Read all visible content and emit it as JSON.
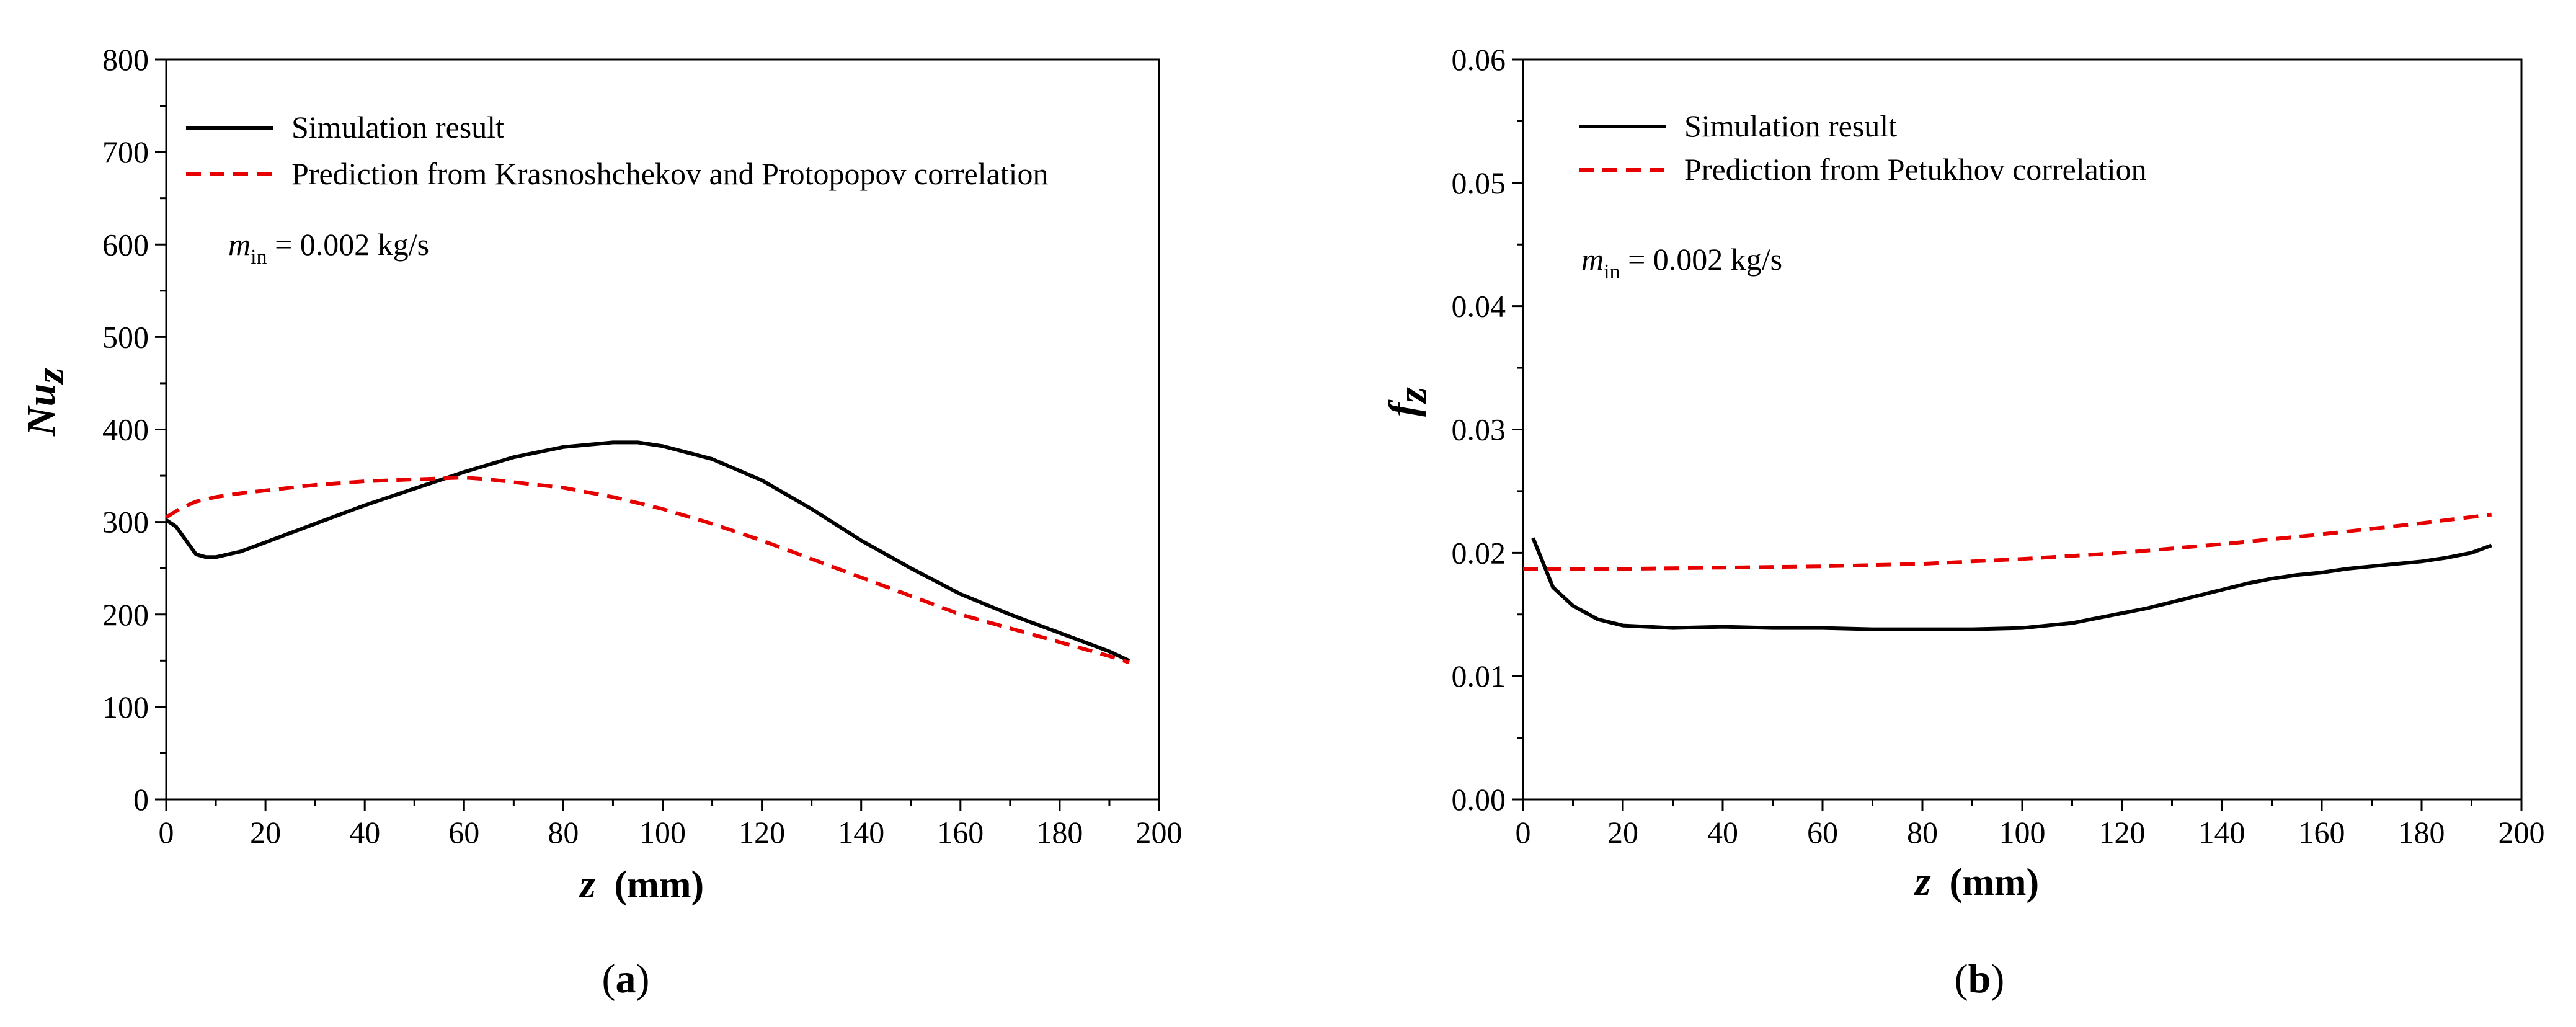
{
  "colors": {
    "simulation": "#000000",
    "prediction": "#e60000"
  },
  "chart_data": [
    {
      "type": "line",
      "panel_label_open": "(",
      "panel_label": "a",
      "panel_label_close": ")",
      "xlabel_var": "z",
      "xlabel_unit": "(mm)",
      "ylabel_var": "Nu",
      "ylabel_sub": "z",
      "xlim": [
        0,
        200
      ],
      "ylim": [
        0,
        800
      ],
      "xticks": [
        0,
        20,
        40,
        60,
        80,
        100,
        120,
        140,
        160,
        180,
        200
      ],
      "yticks": [
        0,
        100,
        200,
        300,
        400,
        500,
        600,
        700,
        800
      ],
      "yticks_display": [
        "0",
        "100",
        "200",
        "300",
        "400",
        "500",
        "600",
        "700",
        "800"
      ],
      "annotation": {
        "var": "m",
        "sub": "in",
        "text": " = 0.002 kg/s"
      },
      "legend_position": "top-left",
      "series": [
        {
          "name": "Simulation result",
          "style": "solid",
          "x": [
            0,
            2,
            4,
            6,
            8,
            10,
            15,
            20,
            30,
            40,
            50,
            60,
            70,
            80,
            90,
            95,
            100,
            110,
            120,
            130,
            140,
            150,
            160,
            170,
            180,
            190,
            194
          ],
          "y": [
            302,
            295,
            280,
            265,
            262,
            262,
            268,
            278,
            298,
            318,
            336,
            354,
            370,
            381,
            386,
            386,
            382,
            368,
            345,
            314,
            280,
            250,
            222,
            200,
            180,
            160,
            150
          ]
        },
        {
          "name": "Prediction from Krasnoshchekov and Protopopov correlation",
          "style": "dashed",
          "x": [
            0,
            3,
            6,
            10,
            15,
            20,
            30,
            40,
            50,
            60,
            65,
            70,
            80,
            90,
            100,
            110,
            120,
            130,
            140,
            150,
            160,
            170,
            180,
            190,
            194
          ],
          "y": [
            305,
            315,
            322,
            327,
            331,
            334,
            340,
            344,
            346,
            348,
            346,
            343,
            337,
            327,
            314,
            298,
            280,
            260,
            240,
            220,
            200,
            185,
            170,
            155,
            148
          ]
        }
      ]
    },
    {
      "type": "line",
      "panel_label_open": "(",
      "panel_label": "b",
      "panel_label_close": ")",
      "xlabel_var": "z",
      "xlabel_unit": "(mm)",
      "ylabel_var": "f",
      "ylabel_sub": "z",
      "xlim": [
        0,
        200
      ],
      "ylim": [
        0,
        0.06
      ],
      "xticks": [
        0,
        20,
        40,
        60,
        80,
        100,
        120,
        140,
        160,
        180,
        200
      ],
      "yticks": [
        0,
        0.01,
        0.02,
        0.03,
        0.04,
        0.05,
        0.06
      ],
      "yticks_display": [
        "0.00",
        "0.01",
        "0.02",
        "0.03",
        "0.04",
        "0.05",
        "0.06"
      ],
      "annotation": {
        "var": "m",
        "sub": "in",
        "text": " = 0.002 kg/s"
      },
      "legend_position": "top-left",
      "series": [
        {
          "name": "Simulation result",
          "style": "solid",
          "x": [
            2,
            4,
            6,
            10,
            15,
            20,
            30,
            40,
            50,
            60,
            70,
            80,
            90,
            100,
            105,
            110,
            115,
            120,
            125,
            130,
            135,
            140,
            145,
            150,
            155,
            160,
            165,
            170,
            175,
            180,
            185,
            190,
            194
          ],
          "y": [
            0.0212,
            0.0192,
            0.0172,
            0.0157,
            0.0146,
            0.0141,
            0.0139,
            0.014,
            0.0139,
            0.0139,
            0.0138,
            0.0138,
            0.0138,
            0.0139,
            0.0141,
            0.0143,
            0.0147,
            0.0151,
            0.0155,
            0.016,
            0.0165,
            0.017,
            0.0175,
            0.0179,
            0.0182,
            0.0184,
            0.0187,
            0.0189,
            0.0191,
            0.0193,
            0.0196,
            0.02,
            0.0206
          ]
        },
        {
          "name": "Prediction from Petukhov correlation",
          "style": "dashed",
          "x": [
            0,
            10,
            20,
            40,
            60,
            80,
            100,
            120,
            140,
            160,
            180,
            194
          ],
          "y": [
            0.0187,
            0.0187,
            0.0187,
            0.0188,
            0.0189,
            0.0191,
            0.0195,
            0.02,
            0.0207,
            0.0215,
            0.0224,
            0.0231
          ]
        }
      ]
    }
  ]
}
